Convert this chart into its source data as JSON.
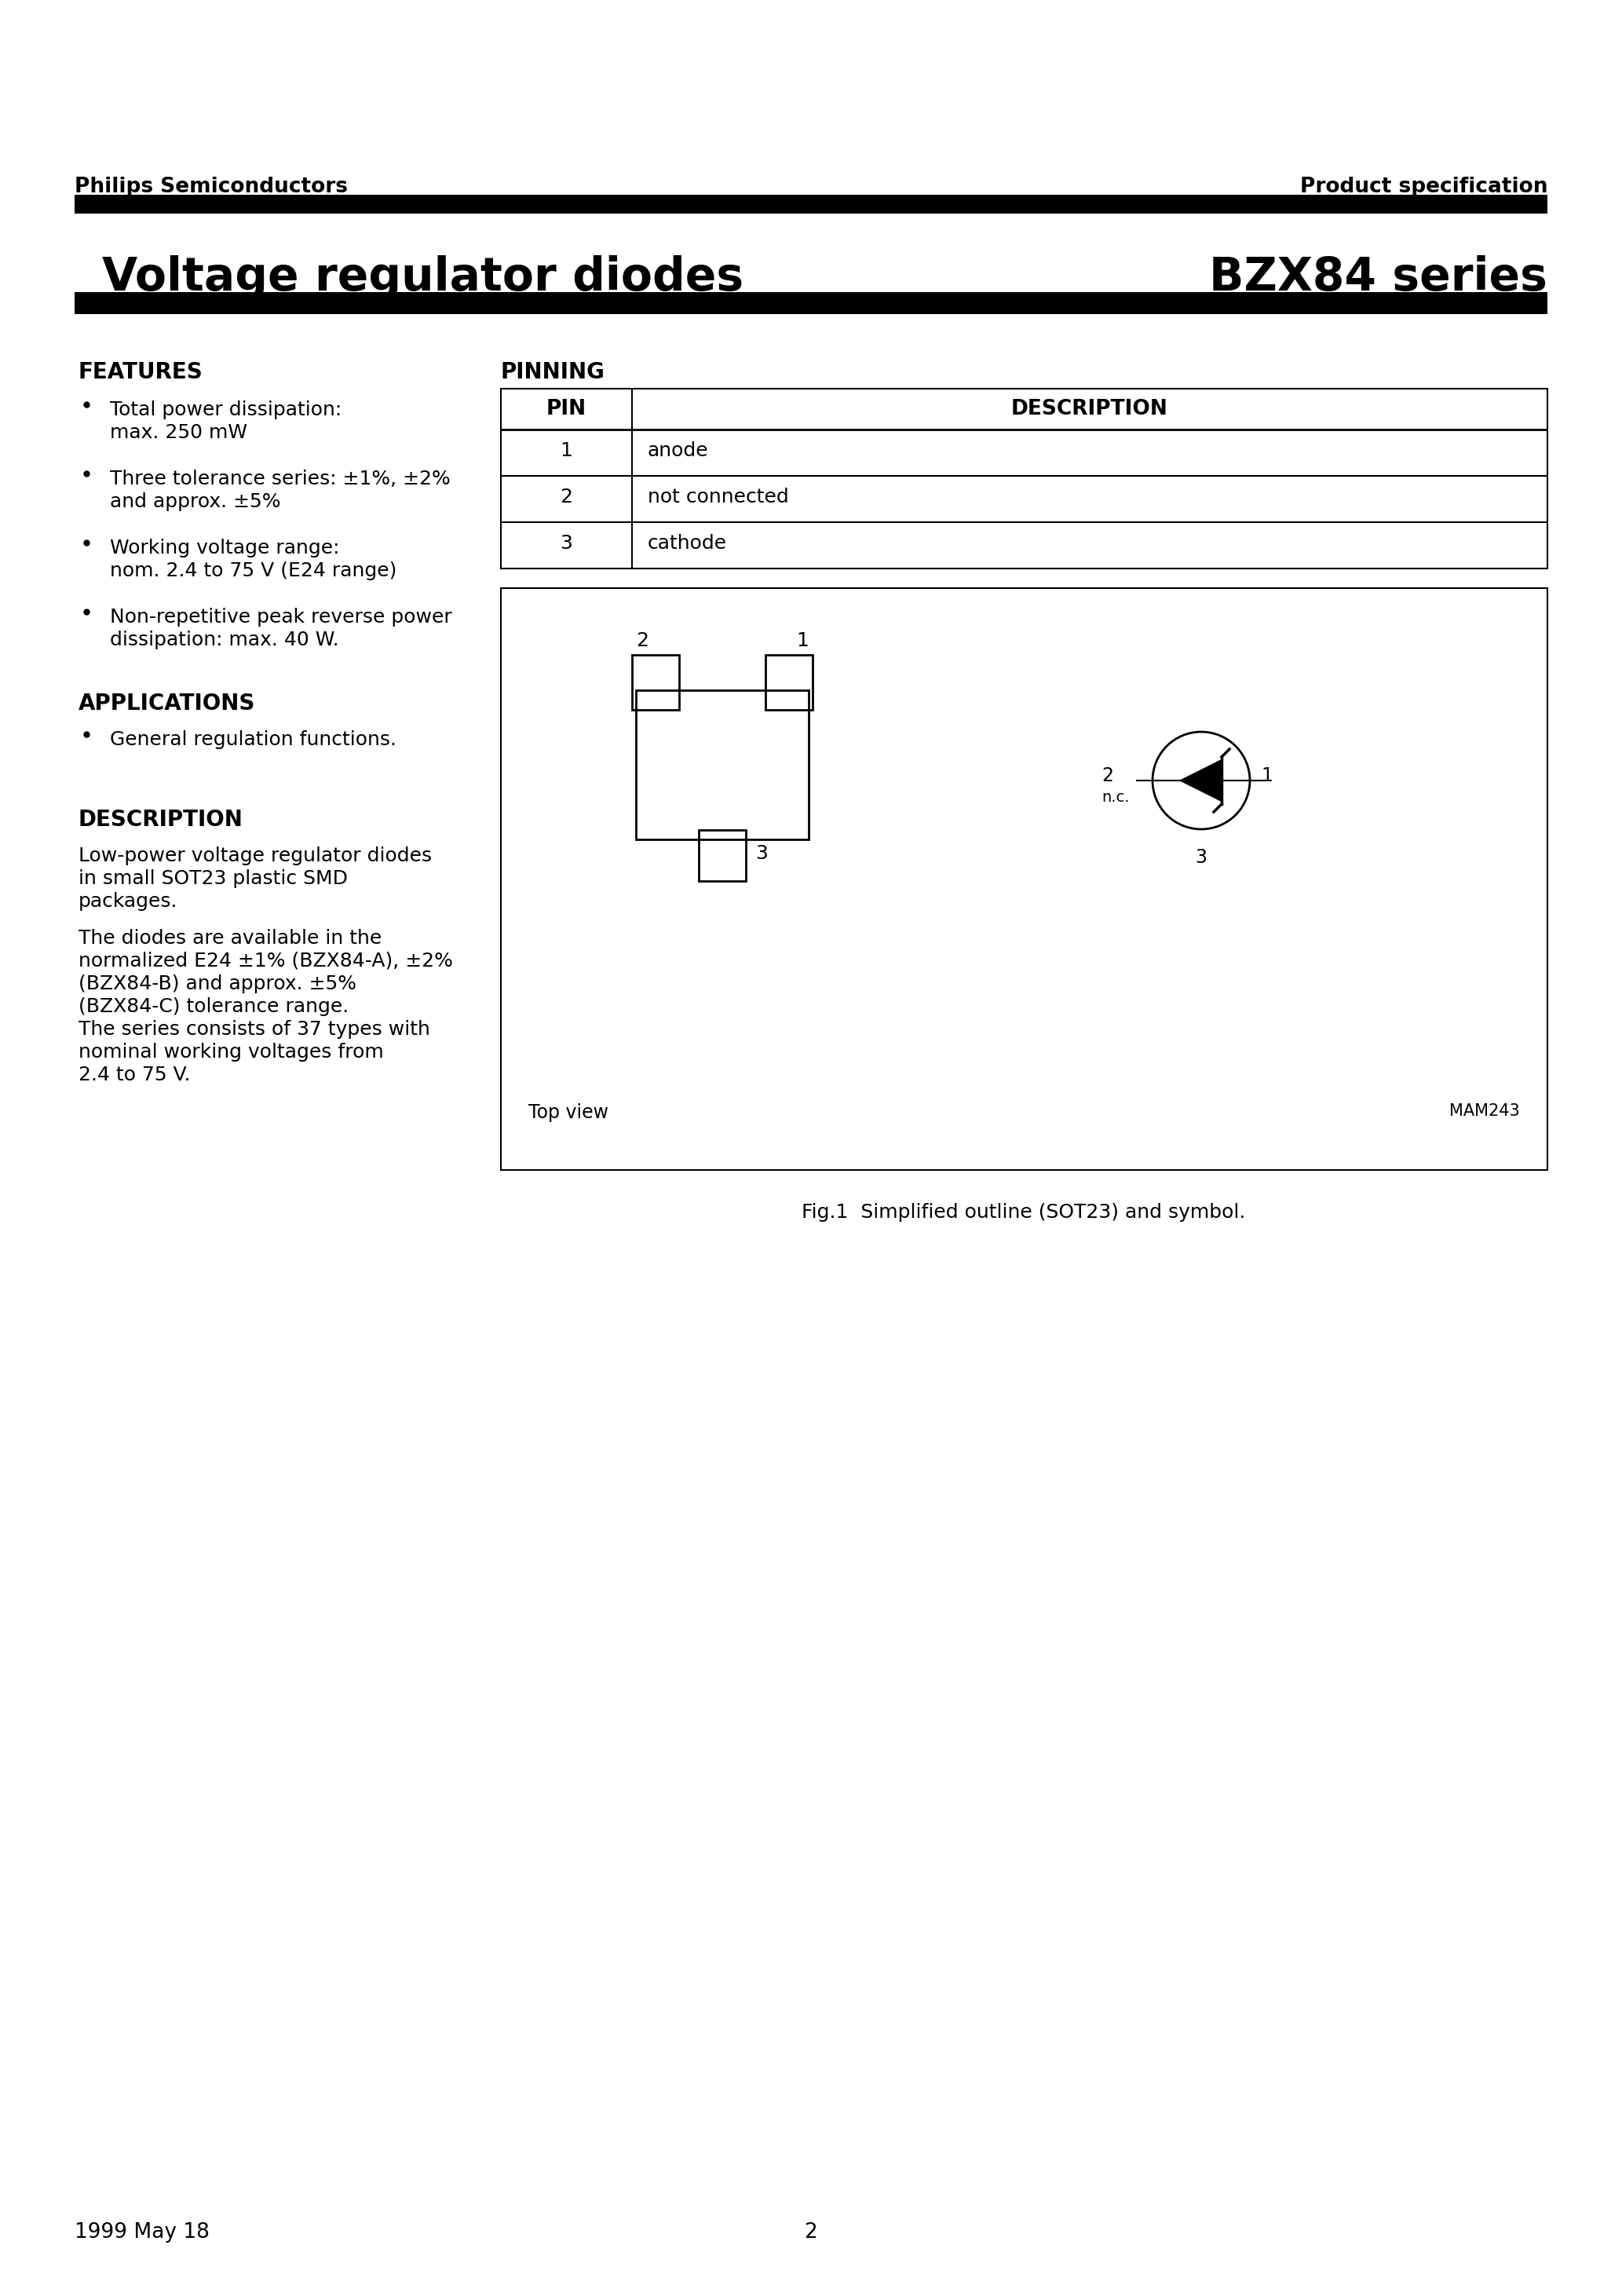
{
  "page_title_left": "Voltage regulator diodes",
  "page_title_right": "BZX84 series",
  "header_left": "Philips Semiconductors",
  "header_right": "Product specification",
  "features_title": "FEATURES",
  "features_items": [
    [
      "Total power dissipation:",
      "max. 250 mW"
    ],
    [
      "Three tolerance series: ±1%, ±2%",
      "and approx. ±5%"
    ],
    [
      "Working voltage range:",
      "nom. 2.4 to 75 V (E24 range)"
    ],
    [
      "Non-repetitive peak reverse power",
      "dissipation: max. 40 W."
    ]
  ],
  "applications_title": "APPLICATIONS",
  "applications_items": [
    "General regulation functions."
  ],
  "description_title": "DESCRIPTION",
  "description_p1": [
    "Low-power voltage regulator diodes",
    "in small SOT23 plastic SMD",
    "packages."
  ],
  "description_p2": [
    "The diodes are available in the",
    "normalized E24 ±1% (BZX84-A), ±2%",
    "(BZX84-B) and approx. ±5%",
    "(BZX84-C) tolerance range.",
    "The series consists of 37 types with",
    "nominal working voltages from",
    "2.4 to 75 V."
  ],
  "pinning_title": "PINNING",
  "pin_table_headers": [
    "PIN",
    "DESCRIPTION"
  ],
  "pin_table_rows": [
    [
      "1",
      "anode"
    ],
    [
      "2",
      "not connected"
    ],
    [
      "3",
      "cathode"
    ]
  ],
  "fig_caption": "Fig.1  Simplified outline (SOT23) and symbol.",
  "top_view_label": "Top view",
  "mam_label": "MAM243",
  "footer_left": "1999 May 18",
  "footer_center": "2",
  "bg_color": "#ffffff",
  "text_color": "#000000"
}
